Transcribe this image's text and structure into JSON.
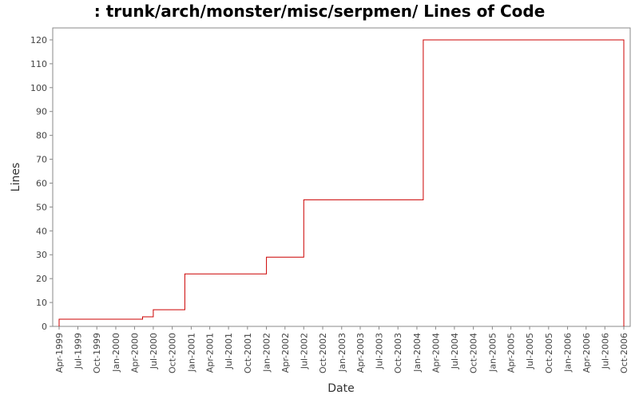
{
  "chart_data": {
    "type": "line",
    "title": ": trunk/arch/monster/misc/serpmen/ Lines of Code",
    "xlabel": "Date",
    "ylabel": "Lines",
    "ylim": [
      0,
      125
    ],
    "yticks": [
      0,
      10,
      20,
      30,
      40,
      50,
      60,
      70,
      80,
      90,
      100,
      110,
      120
    ],
    "xlim": [
      "1999-03-01",
      "2006-11-01"
    ],
    "xticks": [
      "Apr-1999",
      "Jul-1999",
      "Oct-1999",
      "Jan-2000",
      "Apr-2000",
      "Jul-2000",
      "Oct-2000",
      "Jan-2001",
      "Apr-2001",
      "Jul-2001",
      "Oct-2001",
      "Jan-2002",
      "Apr-2002",
      "Jul-2002",
      "Oct-2002",
      "Jan-2003",
      "Apr-2003",
      "Jul-2003",
      "Oct-2003",
      "Jan-2004",
      "Apr-2004",
      "Jul-2004",
      "Oct-2004",
      "Jan-2005",
      "Apr-2005",
      "Jul-2005",
      "Oct-2005",
      "Jan-2006",
      "Apr-2006",
      "Jul-2006",
      "Oct-2006"
    ],
    "grid": false,
    "line_color": "#cc0000",
    "series": [
      {
        "step": true,
        "points": [
          {
            "x": "1999-04-01",
            "y": 0
          },
          {
            "x": "1999-04-01",
            "y": 3
          },
          {
            "x": "2000-05-10",
            "y": 4
          },
          {
            "x": "2000-07-01",
            "y": 7
          },
          {
            "x": "2000-12-01",
            "y": 22
          },
          {
            "x": "2002-01-01",
            "y": 29
          },
          {
            "x": "2002-07-01",
            "y": 53
          },
          {
            "x": "2004-02-01",
            "y": 120
          },
          {
            "x": "2006-10-01",
            "y": 0
          }
        ]
      }
    ]
  }
}
